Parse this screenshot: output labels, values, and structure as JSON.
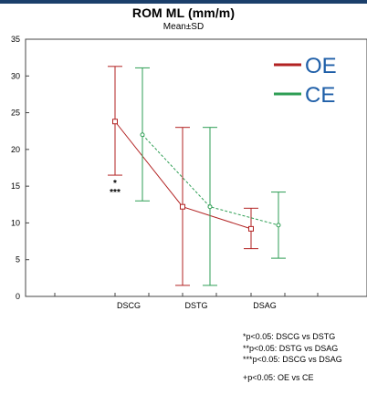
{
  "chart_data": {
    "type": "line",
    "title": "ROM ML (mm/m)",
    "subtitle": "Mean±SD",
    "categories": [
      "DSCG",
      "DSTG",
      "DSAG"
    ],
    "ylim": [
      0,
      35
    ],
    "yticks": [
      "0",
      "5",
      "10",
      "15",
      "20",
      "25",
      "30",
      "35"
    ],
    "grid": false,
    "legend_position": "top-right",
    "series": [
      {
        "name": "OE",
        "color": "#b22222",
        "line_style": "solid",
        "marker": "square",
        "mean": [
          23.8,
          12.2,
          9.2
        ],
        "lower": [
          16.5,
          1.5,
          6.5
        ],
        "upper": [
          31.3,
          23.0,
          12.0
        ]
      },
      {
        "name": "CE",
        "color": "#2e9e54",
        "line_style": "dashed",
        "marker": "circle",
        "mean": [
          22.0,
          12.2,
          9.7
        ],
        "lower": [
          13.0,
          1.5,
          5.2
        ],
        "upper": [
          31.1,
          23.0,
          14.2
        ]
      }
    ],
    "annotations": [
      "*",
      "***"
    ],
    "footnotes": [
      "*p<0.05: DSCG vs DSTG",
      "**p<0.05: DSTG vs DSAG",
      "***p<0.05: DSCG vs DSAG",
      "+p<0.05: OE vs CE"
    ]
  }
}
